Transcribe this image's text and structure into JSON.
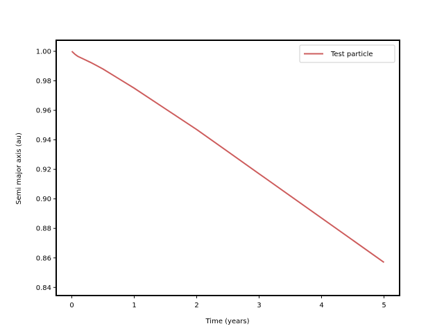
{
  "chart_data": {
    "type": "line",
    "title": "",
    "xlabel": "Time (years)",
    "ylabel": "Semi major axis (au)",
    "xlim": [
      -0.25,
      5.25
    ],
    "ylim": [
      0.8345,
      1.0075
    ],
    "xticks": [
      0,
      1,
      2,
      3,
      4,
      5
    ],
    "xtick_labels": [
      "0",
      "1",
      "2",
      "3",
      "4",
      "5"
    ],
    "yticks": [
      0.84,
      0.86,
      0.88,
      0.9,
      0.92,
      0.94,
      0.96,
      0.98,
      1.0
    ],
    "ytick_labels": [
      "0.84",
      "0.86",
      "0.88",
      "0.90",
      "0.92",
      "0.94",
      "0.96",
      "0.98",
      "1.00"
    ],
    "grid": false,
    "legend_position": "top-right",
    "series": [
      {
        "name": "Test particle",
        "color": "#cd5c5c",
        "x": [
          0,
          0.05,
          0.1,
          0.2,
          0.3,
          0.4,
          0.5,
          0.75,
          1,
          1.5,
          2,
          2.5,
          3,
          3.5,
          4,
          4.5,
          5
        ],
        "y": [
          1.0,
          0.998,
          0.9965,
          0.9945,
          0.9925,
          0.9903,
          0.988,
          0.9815,
          0.975,
          0.961,
          0.947,
          0.932,
          0.917,
          0.902,
          0.887,
          0.872,
          0.857
        ]
      }
    ]
  }
}
